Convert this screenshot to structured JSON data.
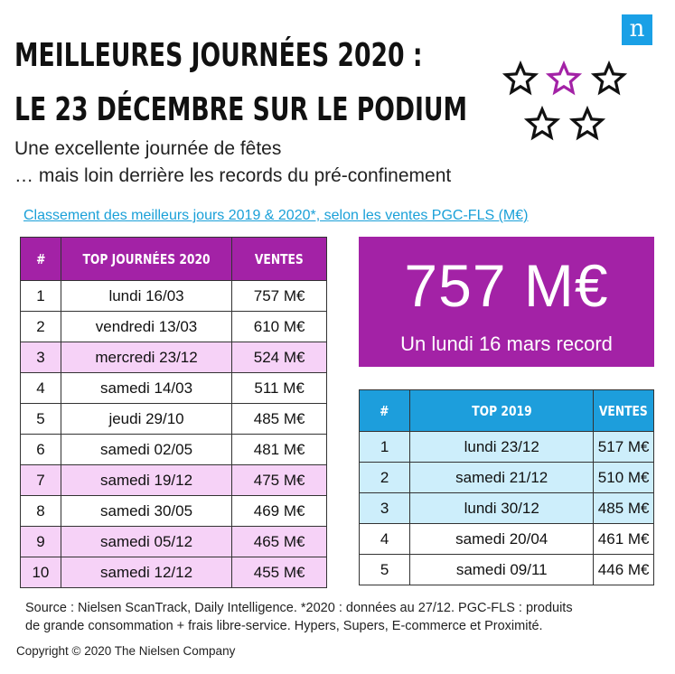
{
  "brand": {
    "logo_letter": "n",
    "logo_color": "#1aa0e6"
  },
  "header": {
    "title_line1": "MEILLEURES JOURNÉES 2020 :",
    "title_line2": "LE 23 DÉCEMBRE SUR LE PODIUM",
    "subtitle_line1": "Une excellente journée de fêtes",
    "subtitle_line2": "… mais loin derrière les records du pré-confinement"
  },
  "decoration": {
    "stars_count": 5,
    "highlight_star_color": "#a322a6"
  },
  "ranking_link": "Classement des meilleurs jours 2019 & 2020*, selon les ventes PGC-FLS (M€)",
  "table_2020": {
    "header_color": "#a322a6",
    "highlight_color": "#f6d2f7",
    "columns": [
      "#",
      "TOP JOURNÉES 2020",
      "VENTES"
    ],
    "rows": [
      {
        "rank": "1",
        "day": "lundi 16/03",
        "sales": "757 M€",
        "highlight": false
      },
      {
        "rank": "2",
        "day": "vendredi 13/03",
        "sales": "610 M€",
        "highlight": false
      },
      {
        "rank": "3",
        "day": "mercredi 23/12",
        "sales": "524 M€",
        "highlight": true
      },
      {
        "rank": "4",
        "day": "samedi 14/03",
        "sales": "511 M€",
        "highlight": false
      },
      {
        "rank": "5",
        "day": "jeudi 29/10",
        "sales": "485 M€",
        "highlight": false
      },
      {
        "rank": "6",
        "day": "samedi 02/05",
        "sales": "481 M€",
        "highlight": false
      },
      {
        "rank": "7",
        "day": "samedi 19/12",
        "sales": "475 M€",
        "highlight": true
      },
      {
        "rank": "8",
        "day": "samedi 30/05",
        "sales": "469 M€",
        "highlight": false
      },
      {
        "rank": "9",
        "day": "samedi 05/12",
        "sales": "465 M€",
        "highlight": true
      },
      {
        "rank": "10",
        "day": "samedi 12/12",
        "sales": "455 M€",
        "highlight": true
      }
    ]
  },
  "record": {
    "value": "757 M€",
    "caption": "Un lundi 16 mars record",
    "box_color": "#a322a6"
  },
  "table_2019": {
    "header_color": "#1d9edc",
    "highlight_color": "#cdeefb",
    "columns": [
      "#",
      "TOP 2019",
      "VENTES"
    ],
    "rows": [
      {
        "rank": "1",
        "day": "lundi 23/12",
        "sales": "517 M€",
        "highlight": true
      },
      {
        "rank": "2",
        "day": "samedi 21/12",
        "sales": "510 M€",
        "highlight": true
      },
      {
        "rank": "3",
        "day": "lundi 30/12",
        "sales": "485 M€",
        "highlight": true
      },
      {
        "rank": "4",
        "day": "samedi 20/04",
        "sales": "461 M€",
        "highlight": false
      },
      {
        "rank": "5",
        "day": "samedi 09/11",
        "sales": "446 M€",
        "highlight": false
      }
    ]
  },
  "footer": {
    "source_line1": "Source : Nielsen ScanTrack, Daily Intelligence. *2020 : données au 27/12. PGC-FLS : produits",
    "source_line2": "de grande consommation + frais libre-service. Hypers, Supers, E-commerce et Proximité.",
    "copyright": "Copyright © 2020 The Nielsen Company"
  }
}
